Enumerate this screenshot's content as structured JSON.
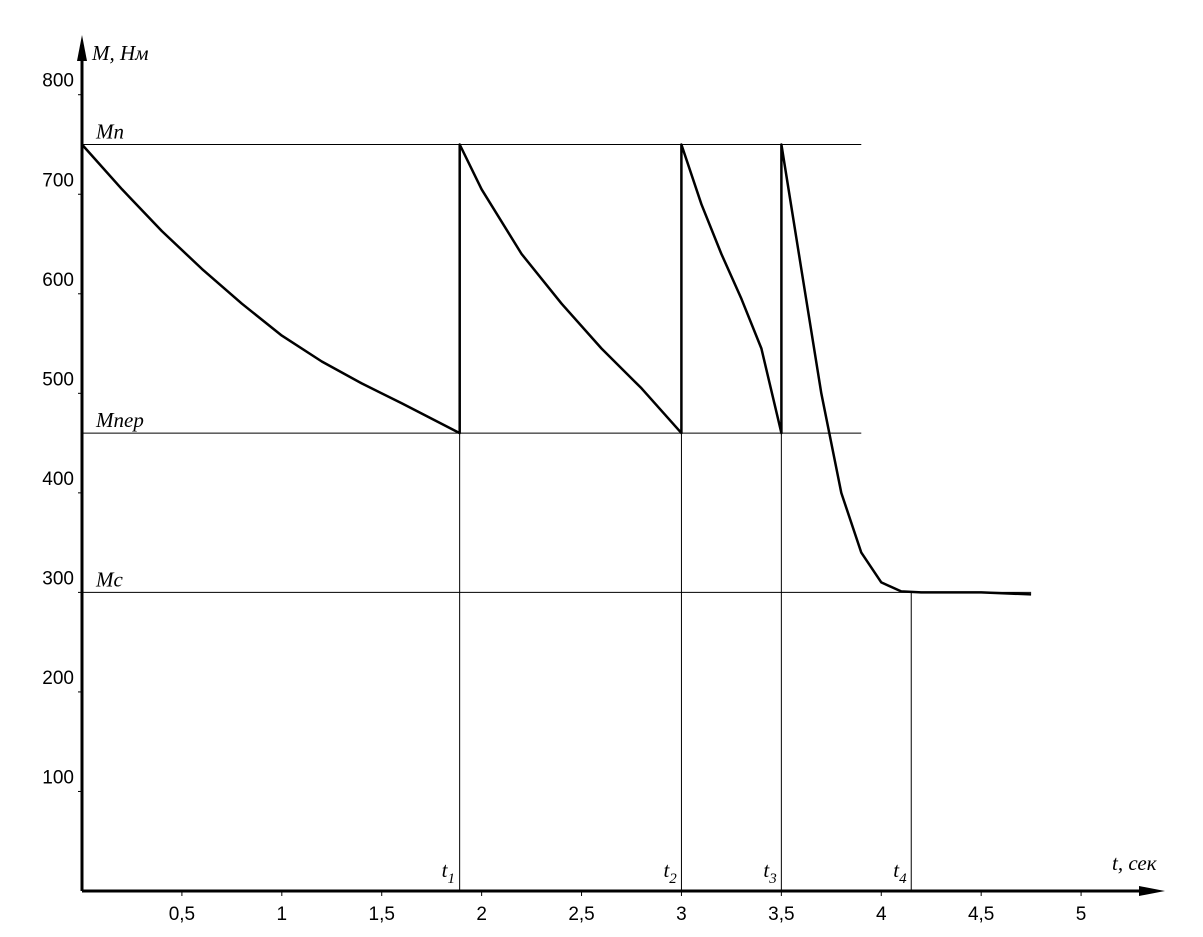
{
  "chart_data": {
    "type": "line",
    "x_label": "t, сек",
    "y_label": "M, Нм",
    "x": [
      0,
      0.2,
      0.4,
      0.6,
      0.8,
      1.0,
      1.2,
      1.4,
      1.6,
      1.89,
      1.89,
      2.0,
      2.2,
      2.4,
      2.6,
      2.8,
      3.0,
      3.0,
      3.1,
      3.2,
      3.3,
      3.4,
      3.5,
      3.5,
      3.6,
      3.7,
      3.8,
      3.9,
      4.0,
      4.1,
      4.2,
      4.5,
      4.75
    ],
    "series": [
      {
        "color": "#000000",
        "values": [
          750,
          705,
          663,
          625,
          590,
          558,
          532,
          510,
          490,
          460,
          750,
          705,
          640,
          590,
          545,
          505,
          460,
          750,
          690,
          640,
          595,
          545,
          460,
          750,
          625,
          500,
          400,
          340,
          310,
          301,
          300,
          300,
          298
        ]
      }
    ],
    "xlim": [
      0,
      5.42
    ],
    "ylim": [
      0,
      860
    ],
    "xticks": [
      {
        "value": 0.5,
        "label": "0,5"
      },
      1,
      {
        "value": 1.5,
        "label": "1,5"
      },
      2,
      {
        "value": 2.5,
        "label": "2,5"
      },
      3,
      {
        "value": 3.5,
        "label": "3,5"
      },
      4,
      {
        "value": 4.5,
        "label": "4,5"
      },
      5
    ],
    "yticks": [
      100,
      200,
      300,
      400,
      500,
      600,
      700,
      800
    ],
    "ref_lines": [
      {
        "label": "Mn",
        "value": 750,
        "xmax": 3.9
      },
      {
        "label": "Mпер",
        "value": 460,
        "xmax": 3.9
      },
      {
        "label": "Mc",
        "value": 300,
        "xmax": 4.75
      }
    ],
    "markers": [
      {
        "label": "t",
        "sub": "1",
        "x": 1.89,
        "y": 460
      },
      {
        "label": "t",
        "sub": "2",
        "x": 3.0,
        "y": 460
      },
      {
        "label": "t",
        "sub": "3",
        "x": 3.5,
        "y": 460
      },
      {
        "label": "t",
        "sub": "4",
        "x": 4.15,
        "y": 300
      }
    ]
  }
}
